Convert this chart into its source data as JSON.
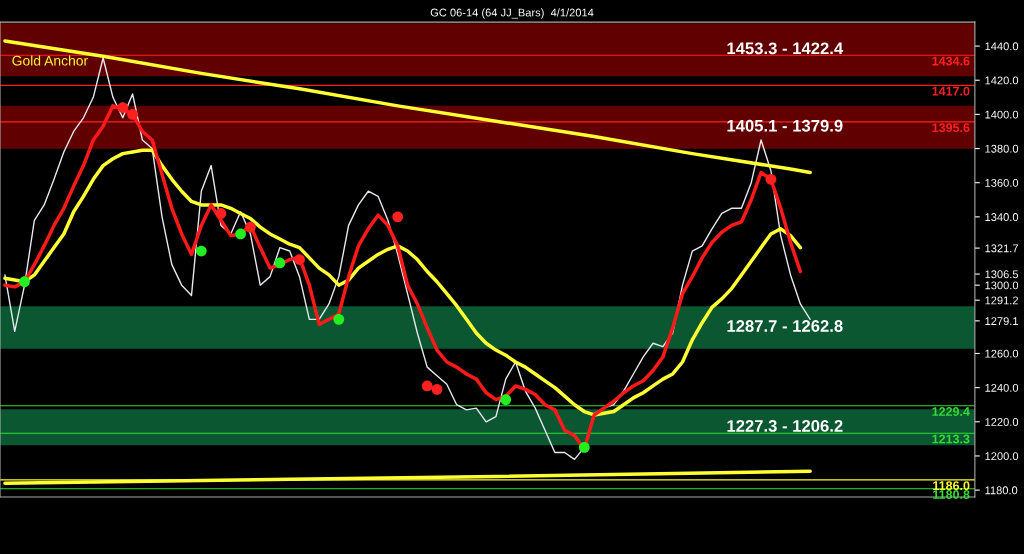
{
  "chart_data": {
    "type": "line",
    "title": "GC 06-14 (64 JJ_Bars)  4/1/2014",
    "categories": [
      null,
      null,
      null,
      null,
      null,
      null,
      null,
      null,
      null,
      null,
      null,
      null,
      null,
      null,
      null,
      null,
      null,
      null,
      null,
      null,
      null,
      null,
      null,
      null,
      null,
      null,
      null,
      null,
      null,
      null,
      null,
      null,
      null,
      null,
      null,
      null,
      null,
      null,
      null,
      null,
      null,
      null,
      null,
      null,
      null,
      null,
      null,
      null,
      null,
      null,
      null,
      null,
      null,
      null,
      null,
      null,
      null,
      null,
      null,
      null,
      null,
      null,
      null,
      null,
      null,
      null,
      null,
      null,
      null,
      null,
      null,
      null,
      null,
      null,
      null,
      null,
      null,
      null,
      null,
      null,
      null,
      null,
      null
    ],
    "series": [
      {
        "color": "#e8e8f0",
        "values": [
          1306,
          1273,
          1300,
          1338,
          1347,
          1362,
          1378,
          1390,
          1398,
          1410,
          1433,
          1410,
          1398,
          1412,
          1385,
          1380,
          1340,
          1312,
          1300,
          1294,
          1355,
          1370,
          1335,
          1330,
          1343,
          1330,
          1300,
          1305,
          1322,
          1320,
          1305,
          1280,
          1280,
          1289,
          1305,
          1335,
          1347,
          1355,
          1352,
          1338,
          1318,
          1295,
          1272,
          1252,
          1247,
          1242,
          1230,
          1227,
          1228,
          1220,
          1223,
          1245,
          1255,
          1238,
          1228,
          1215,
          1202,
          1202,
          1198,
          1205,
          1225,
          1228,
          1230,
          1238,
          1248,
          1258,
          1266,
          1264,
          1272,
          1300,
          1320,
          1323,
          1333,
          1342,
          1345,
          1345,
          1360,
          1385,
          1367,
          1329,
          1306,
          1289,
          1280
        ]
      },
      {
        "color": "#ffff33",
        "values": [
          1304,
          1303,
          1302,
          1306,
          1314,
          1322,
          1330,
          1343,
          1352,
          1362,
          1370,
          1374,
          1377,
          1378,
          1379,
          1379,
          1370,
          1362,
          1355,
          1349,
          1347,
          1347,
          1347,
          1345,
          1342,
          1339,
          1334,
          1330,
          1327,
          1324,
          1322,
          1316,
          1310,
          1306,
          1300,
          1303,
          1310,
          1314,
          1318,
          1321,
          1323,
          1320,
          1315,
          1308,
          1302,
          1295,
          1288,
          1280,
          1272,
          1266,
          1262,
          1259,
          1255,
          1252,
          1248,
          1244,
          1240,
          1235,
          1230,
          1226,
          1224,
          1225,
          1226,
          1230,
          1234,
          1237,
          1241,
          1245,
          1248,
          1255,
          1268,
          1278,
          1287,
          1292,
          1298,
          1306,
          1314,
          1322,
          1330,
          1333,
          1329,
          1322,
          null
        ]
      },
      {
        "color": "#ff1a1a",
        "values": [
          1300,
          1299,
          1302,
          1312,
          1323,
          1335,
          1345,
          1358,
          1370,
          1385,
          1393,
          1405,
          1403,
          1400,
          1390,
          1385,
          1365,
          1345,
          1330,
          1318,
          1335,
          1347,
          1338,
          1329,
          1330,
          1335,
          1322,
          1310,
          1312,
          1315,
          1316,
          1300,
          1277,
          1280,
          1283,
          1305,
          1323,
          1333,
          1341,
          1335,
          1323,
          1300,
          1289,
          1275,
          1262,
          1255,
          1252,
          1248,
          1245,
          1237,
          1233,
          1235,
          1241,
          1239,
          1236,
          1230,
          1227,
          1215,
          1212,
          1204,
          1224,
          1228,
          1232,
          1237,
          1241,
          1244,
          1250,
          1258,
          1275,
          1295,
          1305,
          1316,
          1325,
          1331,
          1335,
          1337,
          1350,
          1366,
          1362,
          1345,
          1325,
          1308,
          null
        ]
      },
      {
        "type": "scatter",
        "color": "#22ee22",
        "values": [
          null,
          null,
          1302,
          null,
          null,
          null,
          null,
          null,
          null,
          null,
          null,
          null,
          null,
          null,
          null,
          null,
          null,
          null,
          null,
          null,
          1320,
          null,
          null,
          null,
          1330,
          null,
          null,
          null,
          1313,
          null,
          null,
          null,
          null,
          null,
          1280,
          null,
          null,
          null,
          null,
          null,
          null,
          null,
          null,
          null,
          null,
          null,
          null,
          null,
          null,
          null,
          null,
          1233,
          null,
          null,
          null,
          null,
          null,
          null,
          null,
          1205,
          null,
          null,
          null,
          null,
          null,
          null,
          null,
          null,
          null,
          null,
          null,
          null,
          null,
          null,
          null,
          null,
          null,
          null,
          null,
          null,
          null,
          null,
          null
        ]
      },
      {
        "type": "scatter",
        "color": "#ff2020",
        "values": [
          null,
          null,
          null,
          null,
          null,
          null,
          null,
          null,
          null,
          null,
          null,
          null,
          1404,
          1400,
          null,
          null,
          null,
          null,
          null,
          null,
          null,
          null,
          1342,
          null,
          null,
          1334,
          null,
          null,
          null,
          null,
          1315,
          null,
          null,
          null,
          null,
          null,
          null,
          null,
          null,
          null,
          1340,
          null,
          null,
          1241,
          1239,
          null,
          null,
          null,
          null,
          null,
          null,
          null,
          null,
          null,
          null,
          null,
          null,
          null,
          null,
          null,
          null,
          null,
          null,
          null,
          null,
          null,
          null,
          null,
          null,
          null,
          null,
          null,
          null,
          null,
          null,
          null,
          null,
          null,
          1362,
          null,
          null,
          null,
          null
        ]
      },
      {
        "color": "#ffff33",
        "values": [
          1443,
          null,
          null,
          null,
          null,
          null,
          null,
          null,
          null,
          null,
          1434,
          null,
          null,
          null,
          null,
          null,
          null,
          null,
          null,
          null,
          1424,
          null,
          null,
          null,
          null,
          null,
          null,
          null,
          null,
          null,
          1415,
          null,
          null,
          null,
          null,
          null,
          null,
          null,
          null,
          null,
          1405,
          null,
          null,
          null,
          null,
          null,
          null,
          null,
          null,
          null,
          1396,
          null,
          null,
          null,
          null,
          null,
          null,
          null,
          null,
          null,
          1387,
          null,
          null,
          null,
          null,
          null,
          null,
          null,
          null,
          null,
          1377,
          null,
          null,
          null,
          null,
          null,
          null,
          null,
          null,
          null,
          1368,
          null,
          1366
        ]
      },
      {
        "color": "#ffff33",
        "values": [
          1184,
          null,
          null,
          null,
          null,
          null,
          null,
          null,
          null,
          null,
          null,
          null,
          null,
          null,
          null,
          null,
          null,
          null,
          null,
          null,
          null,
          null,
          null,
          null,
          null,
          null,
          null,
          null,
          null,
          null,
          null,
          null,
          null,
          null,
          null,
          null,
          null,
          null,
          null,
          null,
          null,
          null,
          null,
          null,
          null,
          null,
          null,
          null,
          null,
          null,
          1188,
          null,
          null,
          null,
          null,
          null,
          null,
          null,
          null,
          null,
          null,
          null,
          null,
          null,
          null,
          null,
          null,
          null,
          null,
          null,
          null,
          null,
          null,
          null,
          null,
          null,
          null,
          null,
          null,
          null,
          null,
          null,
          1191
        ]
      }
    ],
    "ylim": [
      1176,
      1454
    ],
    "yticks": [
      {
        "value": 1180,
        "label": "1180.0"
      },
      {
        "value": 1200,
        "label": "1200.0"
      },
      {
        "value": 1220,
        "label": "1220.0"
      },
      {
        "value": 1240,
        "label": "1240.0"
      },
      {
        "value": 1260,
        "label": "1260.0"
      },
      {
        "value": 1279.1,
        "label": "1279.1"
      },
      {
        "value": 1291.2,
        "label": "1291.2"
      },
      {
        "value": 1300,
        "label": "1300.0"
      },
      {
        "value": 1306.5,
        "label": "1306.5"
      },
      {
        "value": 1321.7,
        "label": "1321.7"
      },
      {
        "value": 1340,
        "label": "1340.0"
      },
      {
        "value": 1360,
        "label": "1360.0"
      },
      {
        "value": 1380,
        "label": "1380.0"
      },
      {
        "value": 1400,
        "label": "1400.0"
      },
      {
        "value": 1420,
        "label": "1420.0"
      },
      {
        "value": 1440,
        "label": "1440.0"
      }
    ],
    "ref_lines": [
      {
        "axis": "y",
        "value": 1434.6,
        "label": "1434.6",
        "color": "#ff2020"
      },
      {
        "axis": "y",
        "value": 1417.0,
        "label": "1417.0",
        "color": "#ff2020"
      },
      {
        "axis": "y",
        "value": 1395.6,
        "label": "1395.6",
        "color": "#ff2020"
      },
      {
        "axis": "y",
        "value": 1229.4,
        "label": "1229.4",
        "color": "#33dd33"
      },
      {
        "axis": "y",
        "value": 1213.3,
        "label": "1213.3",
        "color": "#33dd33"
      },
      {
        "axis": "y",
        "value": 1186.0,
        "label": "1186.0",
        "color": "#ffff33"
      },
      {
        "axis": "y",
        "value": 1180.8,
        "label": "1180.8",
        "color": "#33dd33"
      }
    ],
    "bands": [
      {
        "axis": "y",
        "from": 1422.4,
        "to": 1453.3,
        "label": "1453.3 - 1422.4",
        "color": "#b00000"
      },
      {
        "axis": "y",
        "from": 1379.9,
        "to": 1405.1,
        "label": "1405.1 - 1379.9",
        "color": "#b00000"
      },
      {
        "axis": "y",
        "from": 1262.8,
        "to": 1287.7,
        "label": "1287.7 - 1262.8",
        "color": "#129e5a"
      },
      {
        "axis": "y",
        "from": 1206.2,
        "to": 1227.3,
        "label": "1227.3 - 1206.2",
        "color": "#129e5a"
      }
    ],
    "annotations": [
      "Gold Anchor"
    ],
    "grid": false,
    "legend": false
  }
}
